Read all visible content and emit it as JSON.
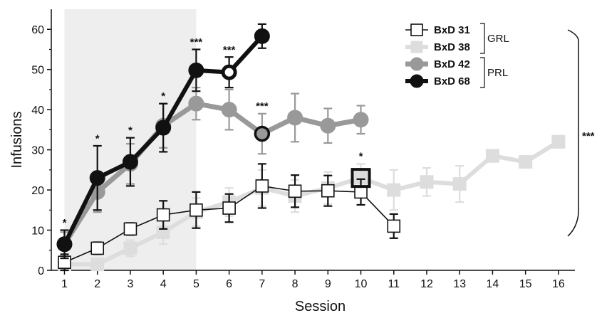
{
  "chart_data": {
    "type": "line",
    "xlabel": "Session",
    "ylabel": "Infusions",
    "xlim": [
      0.6,
      16.5
    ],
    "ylim": [
      0,
      65
    ],
    "x_ticks": [
      1,
      2,
      3,
      4,
      5,
      6,
      7,
      8,
      9,
      10,
      11,
      12,
      13,
      14,
      15,
      16
    ],
    "y_ticks": [
      0,
      10,
      20,
      30,
      40,
      50,
      60
    ],
    "shaded_region": {
      "x": [
        1,
        5
      ],
      "color": "#eeeeee"
    },
    "series": [
      {
        "name": "BxD 31",
        "marker": "open-square",
        "line_color": "#111111",
        "x": [
          1,
          2,
          3,
          4,
          5,
          6,
          7,
          8,
          9,
          10,
          11
        ],
        "y": [
          2,
          5.5,
          10.3,
          13.8,
          15,
          15.5,
          21,
          19.7,
          19.8,
          19.5,
          11
        ],
        "err": [
          2,
          1.5,
          1.5,
          3.5,
          4.5,
          3.5,
          5.5,
          4,
          3.8,
          3.2,
          3
        ]
      },
      {
        "name": "BxD 38",
        "marker": "filled-square",
        "line_color": "#dddddd",
        "x": [
          1,
          2,
          3,
          4,
          5,
          6,
          7,
          8,
          9,
          10,
          11,
          12,
          13,
          14,
          15,
          16
        ],
        "y": [
          1.5,
          1.5,
          5.5,
          9.5,
          14.5,
          17,
          20.5,
          18.5,
          20.5,
          23,
          20,
          22,
          21.5,
          28.5,
          27,
          32
        ],
        "err": [
          1,
          1.5,
          2,
          3,
          3.5,
          3.5,
          4.5,
          4,
          4,
          3.5,
          5,
          3.5,
          4.5,
          1.5,
          1.5,
          1.5
        ]
      },
      {
        "name": "BxD 42",
        "marker": "filled-circle",
        "line_color": "#999999",
        "x": [
          1,
          2,
          3,
          4,
          5,
          6,
          7,
          8,
          9,
          10
        ],
        "y": [
          6.5,
          19.5,
          26.5,
          36,
          41.5,
          40,
          34,
          38,
          36,
          37.5
        ],
        "err": [
          3,
          5,
          5,
          5.5,
          4,
          5,
          5,
          6,
          4.3,
          3.5
        ]
      },
      {
        "name": "BxD 68",
        "marker": "filled-circle",
        "line_color": "#111111",
        "x": [
          1,
          2,
          3,
          4,
          5,
          6,
          7
        ],
        "y": [
          6.5,
          23,
          27,
          35.5,
          49.8,
          49.3,
          58.3
        ],
        "err": [
          3.5,
          8,
          6,
          6,
          5.2,
          3.8,
          3
        ]
      }
    ],
    "legend": {
      "position": "top-right",
      "entries": [
        "BxD 31",
        "BxD 38",
        "BxD 42",
        "BxD 68"
      ],
      "groups": [
        {
          "label": "GRL",
          "members": [
            "BxD 31",
            "BxD 38"
          ]
        },
        {
          "label": "PRL",
          "members": [
            "BxD 42",
            "BxD 68"
          ]
        }
      ]
    },
    "annotations": [
      {
        "x": 1,
        "y": 11,
        "text": "*"
      },
      {
        "x": 2,
        "y": 32,
        "text": "*"
      },
      {
        "x": 3,
        "y": 34,
        "text": "*"
      },
      {
        "x": 4,
        "y": 42.5,
        "text": "*"
      },
      {
        "x": 5,
        "y": 56,
        "text": "***"
      },
      {
        "x": 6,
        "y": 54,
        "text": "***"
      },
      {
        "x": 7,
        "y": 40,
        "text": "***"
      },
      {
        "x": 10,
        "y": 27.5,
        "text": "*"
      }
    ],
    "overall_significance": {
      "text": "***",
      "position": "right"
    },
    "grid": false
  }
}
